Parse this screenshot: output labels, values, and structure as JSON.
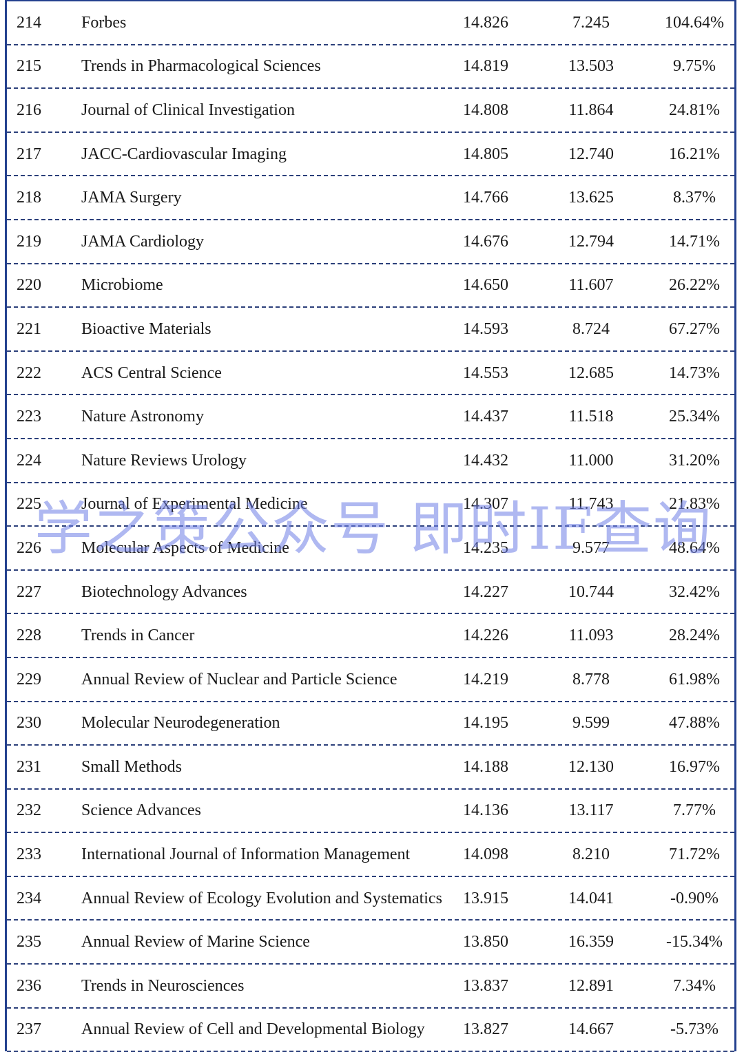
{
  "table": {
    "rows": [
      [
        "214",
        "Forbes",
        "14.826",
        "7.245",
        "104.64%"
      ],
      [
        "215",
        "Trends in Pharmacological Sciences",
        "14.819",
        "13.503",
        "9.75%"
      ],
      [
        "216",
        "Journal of Clinical Investigation",
        "14.808",
        "11.864",
        "24.81%"
      ],
      [
        "217",
        "JACC-Cardiovascular Imaging",
        "14.805",
        "12.740",
        "16.21%"
      ],
      [
        "218",
        "JAMA Surgery",
        "14.766",
        "13.625",
        "8.37%"
      ],
      [
        "219",
        "JAMA Cardiology",
        "14.676",
        "12.794",
        "14.71%"
      ],
      [
        "220",
        "Microbiome",
        "14.650",
        "11.607",
        "26.22%"
      ],
      [
        "221",
        "Bioactive Materials",
        "14.593",
        "8.724",
        "67.27%"
      ],
      [
        "222",
        "ACS Central Science",
        "14.553",
        "12.685",
        "14.73%"
      ],
      [
        "223",
        "Nature Astronomy",
        "14.437",
        "11.518",
        "25.34%"
      ],
      [
        "224",
        "Nature Reviews Urology",
        "14.432",
        "11.000",
        "31.20%"
      ],
      [
        "225",
        "Journal of Experimental Medicine",
        "14.307",
        "11.743",
        "21.83%"
      ],
      [
        "226",
        "Molecular Aspects of Medicine",
        "14.235",
        "9.577",
        "48.64%"
      ],
      [
        "227",
        "Biotechnology Advances",
        "14.227",
        "10.744",
        "32.42%"
      ],
      [
        "228",
        "Trends in Cancer",
        "14.226",
        "11.093",
        "28.24%"
      ],
      [
        "229",
        "Annual Review of Nuclear and Particle Science",
        "14.219",
        "8.778",
        "61.98%"
      ],
      [
        "230",
        "Molecular Neurodegeneration",
        "14.195",
        "9.599",
        "47.88%"
      ],
      [
        "231",
        "Small Methods",
        "14.188",
        "12.130",
        "16.97%"
      ],
      [
        "232",
        "Science Advances",
        "14.136",
        "13.117",
        "7.77%"
      ],
      [
        "233",
        "International Journal of Information Management",
        "14.098",
        "8.210",
        "71.72%"
      ],
      [
        "234",
        "Annual Review of Ecology Evolution and Systematics",
        "13.915",
        "14.041",
        "-0.90%"
      ],
      [
        "235",
        "Annual Review of Marine Science",
        "13.850",
        "16.359",
        "-15.34%"
      ],
      [
        "236",
        "Trends in Neurosciences",
        "13.837",
        "12.891",
        "7.34%"
      ],
      [
        "237",
        "Annual Review of Cell and Developmental Biology",
        "13.827",
        "14.667",
        "-5.73%"
      ]
    ]
  },
  "watermark": "学之策公众号 即时IF查询"
}
